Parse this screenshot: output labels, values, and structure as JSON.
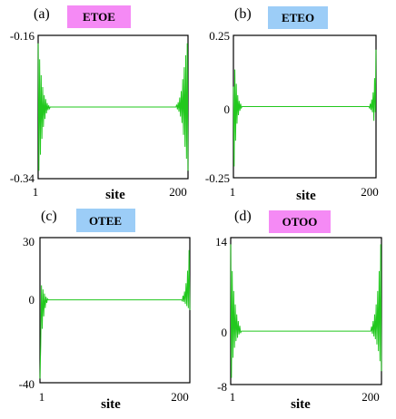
{
  "colors": {
    "line": "#22c81e",
    "tag_pink": "#f58af5",
    "tag_blue": "#9ccdf7"
  },
  "chart_data": [
    {
      "type": "line",
      "panel": "(a)",
      "tag": {
        "text": "ETOE",
        "color": "#f58af5"
      },
      "xlabel": "site",
      "xticks": [
        "1",
        "200"
      ],
      "yticks": [
        "-0.16",
        "-0.34"
      ],
      "xlim": [
        1,
        200
      ],
      "ylim": [
        -0.34,
        -0.16
      ],
      "baseline": -0.25,
      "edge_values_left": [
        -0.17,
        -0.33,
        -0.19,
        -0.31,
        -0.21,
        -0.29,
        -0.225,
        -0.275,
        -0.235,
        -0.265,
        -0.24,
        -0.258,
        -0.245,
        -0.254,
        -0.248,
        -0.252,
        -0.25
      ],
      "edge_values_right": [
        -0.33,
        -0.17,
        -0.315,
        -0.185,
        -0.3,
        -0.2,
        -0.285,
        -0.215,
        -0.27,
        -0.23,
        -0.262,
        -0.238,
        -0.256,
        -0.244,
        -0.253,
        -0.247,
        -0.25
      ]
    },
    {
      "type": "line",
      "panel": "(b)",
      "tag": {
        "text": "ETEO",
        "color": "#9ccdf7"
      },
      "xlabel": "site",
      "xticks": [
        "1",
        "200"
      ],
      "yticks": [
        "0.25",
        "0",
        "-0.25"
      ],
      "xlim": [
        1,
        200
      ],
      "ylim": [
        -0.25,
        0.25
      ],
      "baseline": 0,
      "edge_values_left": [
        0.07,
        -0.21,
        0.13,
        -0.12,
        0.08,
        -0.06,
        0.04,
        -0.03,
        0.02,
        -0.015,
        0.01,
        -0.005,
        0.0
      ],
      "edge_values_right": [
        0.2,
        -0.02,
        0.1,
        -0.05,
        0.05,
        -0.02,
        0.025,
        -0.012,
        0.01,
        -0.005,
        0.0
      ]
    },
    {
      "type": "line",
      "panel": "(c)",
      "tag": {
        "text": "OTEE",
        "color": "#9ccdf7"
      },
      "xlabel": "site",
      "xticks": [
        "1",
        "200"
      ],
      "yticks": [
        "30",
        "0",
        "-40"
      ],
      "xlim": [
        1,
        200
      ],
      "ylim": [
        -40,
        30
      ],
      "baseline": 0,
      "edge_values_left": [
        -38,
        -22,
        7,
        -14,
        5,
        -8,
        3,
        -4,
        1.5,
        -1.5,
        0.5,
        0
      ],
      "edge_values_right": [
        -5,
        24,
        -4,
        14,
        -3,
        8,
        -2,
        4,
        -1,
        2,
        -0.5,
        0
      ]
    },
    {
      "type": "line",
      "panel": "(d)",
      "tag": {
        "text": "OTOO",
        "color": "#f58af5"
      },
      "xlabel": "site",
      "xticks": [
        "1",
        "200"
      ],
      "yticks": [
        "14",
        "0",
        "-8"
      ],
      "xlim": [
        1,
        200
      ],
      "ylim": [
        -8,
        14
      ],
      "baseline": 0,
      "edge_values_left": [
        13,
        -7,
        9,
        -4,
        6,
        -2.5,
        4,
        -1.5,
        2.5,
        -1,
        1.5,
        -0.5,
        0.8,
        -0.3,
        0
      ],
      "edge_values_right": [
        -6,
        13,
        -4.5,
        9,
        -3,
        6,
        -2,
        4,
        -1.2,
        2.5,
        -0.8,
        1.5,
        -0.4,
        0.7,
        0
      ]
    }
  ]
}
